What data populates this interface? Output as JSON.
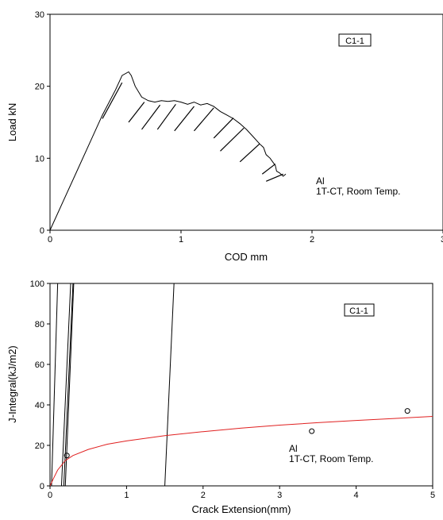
{
  "chart_data": [
    {
      "type": "line",
      "xlabel": "COD mm",
      "ylabel": "Load kN",
      "xlim": [
        0,
        3
      ],
      "ylim": [
        0,
        30
      ],
      "x_ticks": [
        "0",
        "1",
        "2",
        "3"
      ],
      "y_ticks": [
        "0",
        "10",
        "20",
        "30"
      ],
      "tag": "C1-1",
      "annotation": [
        "Al",
        "1T-CT, Room Temp."
      ],
      "grid": false,
      "series": [
        {
          "color": "#000000",
          "x": [
            0,
            0.1,
            0.2,
            0.3,
            0.4,
            0.5,
            0.55,
            0.6,
            0.62,
            0.65,
            0.7,
            0.75,
            0.8,
            0.85,
            0.9,
            0.95,
            1.0,
            1.05,
            1.1,
            1.15,
            1.2,
            1.25,
            1.3,
            1.35,
            1.4,
            1.45,
            1.5,
            1.55,
            1.6,
            1.63,
            1.65,
            1.68,
            1.7,
            1.72,
            1.73,
            1.75,
            1.78,
            1.8
          ],
          "y": [
            0,
            4.0,
            8.0,
            12.0,
            16.0,
            19.5,
            21.5,
            22.0,
            21.5,
            20.0,
            18.5,
            18.0,
            17.8,
            18.0,
            17.9,
            18.0,
            17.8,
            17.5,
            17.8,
            17.4,
            17.6,
            17.2,
            16.5,
            16.0,
            15.5,
            14.8,
            14.0,
            13.0,
            12.0,
            11.5,
            10.5,
            10.0,
            9.5,
            9.0,
            8.2,
            8.0,
            7.5,
            7.8
          ]
        }
      ],
      "unload_segments": [
        [
          [
            0.4,
            15.5
          ],
          [
            0.55,
            20.5
          ]
        ],
        [
          [
            0.6,
            15.0
          ],
          [
            0.72,
            17.8
          ]
        ],
        [
          [
            0.7,
            14.0
          ],
          [
            0.84,
            17.4
          ]
        ],
        [
          [
            0.82,
            14.0
          ],
          [
            0.96,
            17.5
          ]
        ],
        [
          [
            0.95,
            13.8
          ],
          [
            1.1,
            17.2
          ]
        ],
        [
          [
            1.1,
            13.8
          ],
          [
            1.25,
            17.0
          ]
        ],
        [
          [
            1.25,
            12.8
          ],
          [
            1.4,
            15.6
          ]
        ],
        [
          [
            1.3,
            11.0
          ],
          [
            1.48,
            14.2
          ]
        ],
        [
          [
            1.45,
            9.5
          ],
          [
            1.6,
            12.0
          ]
        ],
        [
          [
            1.62,
            7.8
          ],
          [
            1.72,
            9.2
          ]
        ],
        [
          [
            1.65,
            6.8
          ],
          [
            1.78,
            7.8
          ]
        ]
      ]
    },
    {
      "type": "scatter",
      "xlabel": "Crack Extension(mm)",
      "ylabel": "J-Integral(kJ/m2)",
      "xlim": [
        0,
        5
      ],
      "ylim": [
        0,
        100
      ],
      "x_ticks": [
        "0",
        "1",
        "2",
        "3",
        "4",
        "5"
      ],
      "y_ticks": [
        "0",
        "20",
        "40",
        "60",
        "80",
        "100"
      ],
      "tag": "C1-1",
      "annotation": [
        "Al",
        "1T-CT, Room Temp."
      ],
      "grid": false,
      "points": {
        "x": [
          0.22,
          3.42,
          4.67
        ],
        "y": [
          15,
          27,
          37
        ],
        "marker": "open-circle"
      },
      "fit_curve": {
        "color": "#e02020",
        "x": [
          0.0,
          0.05,
          0.1,
          0.2,
          0.3,
          0.5,
          0.75,
          1.0,
          1.5,
          2.0,
          2.5,
          3.0,
          3.5,
          4.0,
          4.5,
          5.0
        ],
        "y": [
          0,
          4.0,
          7.8,
          12.5,
          15.0,
          18.0,
          20.6,
          22.2,
          24.8,
          26.8,
          28.5,
          30.0,
          31.2,
          32.3,
          33.3,
          34.3
        ]
      },
      "blunting_lines": [
        [
          [
            0.02,
            0
          ],
          [
            0.1,
            100
          ]
        ],
        [
          [
            0.15,
            0
          ],
          [
            0.27,
            100
          ]
        ],
        [
          [
            0.18,
            0
          ],
          [
            0.3,
            100
          ]
        ],
        [
          [
            0.2,
            0
          ],
          [
            0.31,
            100
          ]
        ],
        [
          [
            1.5,
            0
          ],
          [
            1.62,
            100
          ]
        ]
      ]
    }
  ]
}
